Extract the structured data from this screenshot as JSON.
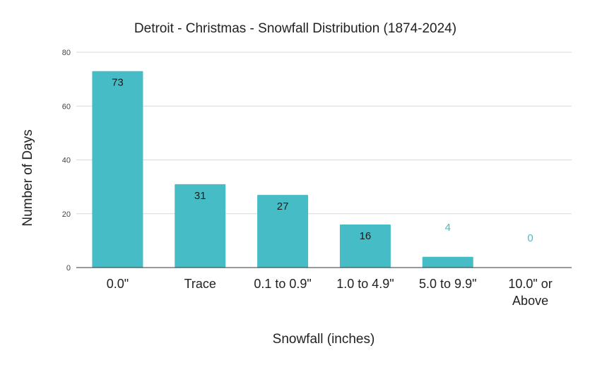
{
  "chart_data": {
    "type": "bar",
    "title": "Detroit - Christmas - Snowfall Distribution (1874-2024)",
    "xlabel": "Snowfall (inches)",
    "ylabel": "Number of Days",
    "categories": [
      [
        "0.0\""
      ],
      [
        "Trace"
      ],
      [
        "0.1 to 0.9\""
      ],
      [
        "1.0 to 4.9\""
      ],
      [
        "5.0 to 9.9\""
      ],
      [
        "10.0\" or",
        "Above"
      ]
    ],
    "values": [
      73,
      31,
      27,
      16,
      4,
      0
    ],
    "data_labels": [
      "73",
      "31",
      "27",
      "16",
      "4",
      "0"
    ],
    "ylim": [
      0,
      80
    ],
    "yticks": [
      0,
      20,
      40,
      60,
      80
    ],
    "ytick_labels": [
      "0",
      "20",
      "40",
      "60",
      "80"
    ],
    "grid": true,
    "legend": "none",
    "colors": {
      "bar": "#46bdc6",
      "label_inside": "#1a1a1a",
      "label_outside": "#46bdc6"
    }
  }
}
